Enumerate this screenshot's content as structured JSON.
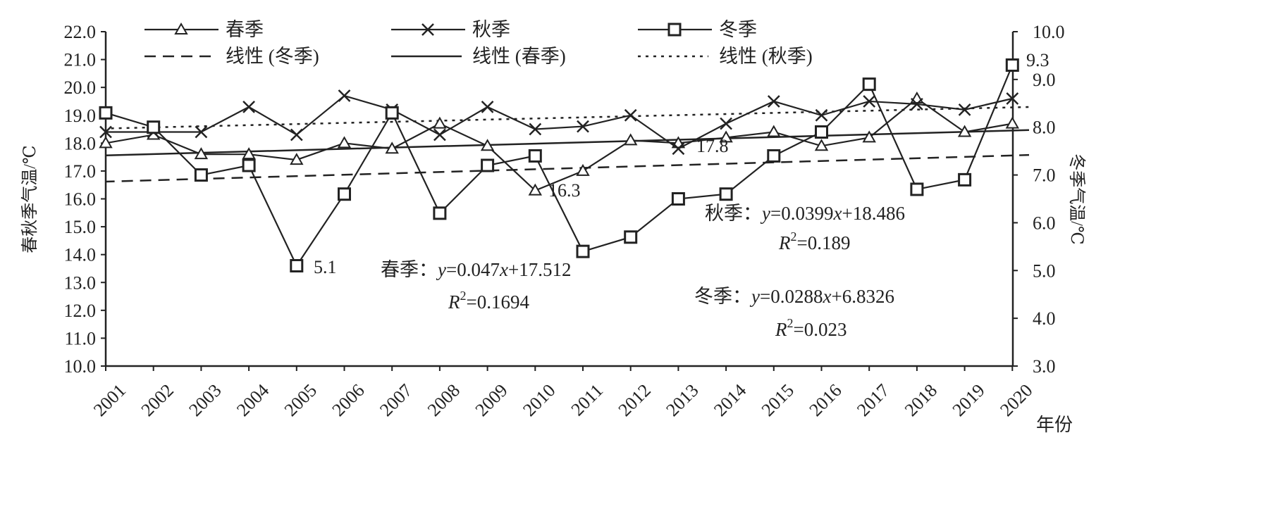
{
  "chart_data": {
    "type": "line",
    "x": [
      "2001",
      "2002",
      "2003",
      "2004",
      "2005",
      "2006",
      "2007",
      "2008",
      "2009",
      "2010",
      "2011",
      "2012",
      "2013",
      "2014",
      "2015",
      "2016",
      "2017",
      "2018",
      "2019",
      "2020"
    ],
    "xlabel": "年份",
    "ylabel_left": "春秋季气温/℃",
    "ylabel_right": "冬季气温/℃",
    "ylim_left": [
      10,
      22
    ],
    "ylim_right": [
      3,
      10
    ],
    "yticks_left": [
      "10.0",
      "11.0",
      "12.0",
      "13.0",
      "14.0",
      "15.0",
      "16.0",
      "17.0",
      "18.0",
      "19.0",
      "20.0",
      "21.0",
      "22.0"
    ],
    "yticks_right": [
      "3.0",
      "4.0",
      "5.0",
      "6.0",
      "7.0",
      "8.0",
      "9.0",
      "10.0"
    ],
    "series": [
      {
        "name": "春季",
        "axis": "left",
        "marker": "triangle",
        "values": [
          18.0,
          18.3,
          17.6,
          17.6,
          17.4,
          18.0,
          17.8,
          18.7,
          17.9,
          16.3,
          17.0,
          18.1,
          18.0,
          18.2,
          18.4,
          17.9,
          18.2,
          19.6,
          18.4,
          18.7
        ]
      },
      {
        "name": "秋季",
        "axis": "left",
        "marker": "x",
        "values": [
          18.4,
          18.4,
          18.4,
          19.3,
          18.3,
          19.7,
          19.2,
          18.3,
          19.3,
          18.5,
          18.6,
          19.0,
          17.8,
          18.7,
          19.5,
          19.0,
          19.5,
          19.4,
          19.2,
          19.6
        ]
      },
      {
        "name": "冬季",
        "axis": "right",
        "marker": "square",
        "values": [
          8.3,
          8.0,
          7.0,
          7.2,
          5.1,
          6.6,
          8.3,
          6.2,
          7.2,
          7.4,
          5.4,
          5.7,
          6.5,
          6.6,
          7.4,
          7.9,
          8.9,
          6.7,
          6.9,
          9.3
        ]
      }
    ],
    "trendlines": [
      {
        "name": "线性 (冬季)",
        "of": "冬季",
        "axis": "right",
        "style": "dashed",
        "slope": 0.0288,
        "intercept": 6.8326
      },
      {
        "name": "线性 (春季)",
        "of": "春季",
        "axis": "left",
        "style": "solid",
        "slope": 0.047,
        "intercept": 17.512
      },
      {
        "name": "线性 (秋季)",
        "of": "秋季",
        "axis": "left",
        "style": "dotted",
        "slope": 0.0399,
        "intercept": 18.486
      }
    ],
    "point_labels": [
      "5.1",
      "16.3",
      "17.8",
      "9.3"
    ],
    "equations": [
      {
        "eq": "秋季：y=0.0399x+18.486",
        "r2": "R2=0.189"
      },
      {
        "eq": "春季：y=0.047x+17.512",
        "r2": "R2=0.1694"
      },
      {
        "eq": "冬季：y=0.0288x+6.8326",
        "r2": "R2=0.023"
      }
    ],
    "legend_position": "top",
    "grid": false,
    "colors": {
      "line": "#222222",
      "background": "#ffffff"
    }
  }
}
